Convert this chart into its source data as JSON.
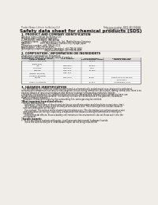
{
  "bg_color": "#f0ede8",
  "page_bg": "#f0ede8",
  "title": "Safety data sheet for chemical products (SDS)",
  "header_left": "Product Name: Lithium Ion Battery Cell",
  "header_right_line1": "Reference number: SBE2-093-09001B",
  "header_right_line2": "Established / Revision: Dec.1 2009",
  "section1_title": "1. PRODUCT AND COMPANY IDENTIFICATION",
  "section1_lines": [
    "・Product name: Lithium Ion Battery Cell",
    "・Product code: Cylindrical-type cell",
    "    IHR18650U, IHR18650L, IHR18650A",
    "・Company name:      Sanyo Electric Co., Ltd.  Mobile Energy Company",
    "・Address:               2001  Kamikawain, Sumoto-City, Hyogo, Japan",
    "・Telephone number:  +81-799-26-4111",
    "・Fax number:  +81-799-26-4129",
    "・Emergency telephone number (Weekday) +81-799-26-3842",
    "                                       (Night and holiday) +81-799-26-4101"
  ],
  "section2_title": "2. COMPOSITION / INFORMATION ON INGREDIENTS",
  "section2_sub": "・Substance or preparation: Preparation",
  "section2_sub2": "・Information about the chemical nature of product:",
  "table_headers_row1": [
    "Component / chemical name",
    "CAS number",
    "Concentration /",
    "Classification and"
  ],
  "table_headers_row2": [
    "Several Names",
    "",
    "Concentration range",
    "hazard labeling"
  ],
  "table_rows": [
    [
      "Lithium cobalt oxide",
      "-",
      "30-60%",
      ""
    ],
    [
      "(LiMnCoO2)",
      "",
      "",
      ""
    ],
    [
      "Iron",
      "7439-89-6",
      "15-25%",
      ""
    ],
    [
      "Aluminum",
      "7429-90-5",
      "2-5%",
      ""
    ],
    [
      "Graphite",
      "7782-42-5",
      "10-25%",
      ""
    ],
    [
      "(Natural graphite)",
      "7782-42-5",
      "",
      ""
    ],
    [
      "(Artificial graphite)",
      "",
      "",
      ""
    ],
    [
      "Copper",
      "7440-50-8",
      "5-15%",
      "Sensitization of the skin"
    ],
    [
      "",
      "",
      "",
      "group No.2"
    ],
    [
      "Organic electrolyte",
      "-",
      "10-20%",
      "Inflammable liquid"
    ]
  ],
  "section3_title": "3. HAZARDS IDENTIFICATION",
  "section3_body": [
    "   For this battery cell, chemical materials are stored in a hermetically sealed metal case, designed to withstand",
    "temperatures between minus-forty to sixty degrees Celsius during normal use. As a result, during normal-use, there is no",
    "physical danger of ignition or explosion and there is no danger of hazardous materials leakage.",
    "   However, if exposed to a fire, added mechanical shocks, decomposed, written electro-where-my have use.",
    "No gas leakage cannot be operated. The battery cell case will be breached of fire-patterns. Hazardous",
    "materials may be released.",
    "   Moreover, if heated strongly by the surrounding fire, some gas may be emitted."
  ],
  "bullet1": "・Most important hazard and effects:",
  "human_label": "Human health effects:",
  "human_body": [
    "      Inhalation: The release of the electrolyte has an anesthesia action and stimulates a respiratory tract.",
    "      Skin contact: The release of the electrolyte stimulates a skin. The electrolyte skin contact causes a",
    "   sore and stimulation on the skin.",
    "      Eye contact: The release of the electrolyte stimulates eyes. The electrolyte eye contact causes a sore",
    "   and stimulation on the eye. Especially, a substance that causes a strong inflammation of the eye is",
    "   contained."
  ],
  "env_body": [
    "      Environmental effects: Since a battery cell remains in the environment, do not throw out it into the",
    "   environment."
  ],
  "bullet2": "・Specific hazards:",
  "specific_body": [
    "      If the electrolyte contacts with water, it will generate detrimental hydrogen fluoride.",
    "      Since the said electrolyte is inflammable liquid, do not bring close to fire."
  ]
}
